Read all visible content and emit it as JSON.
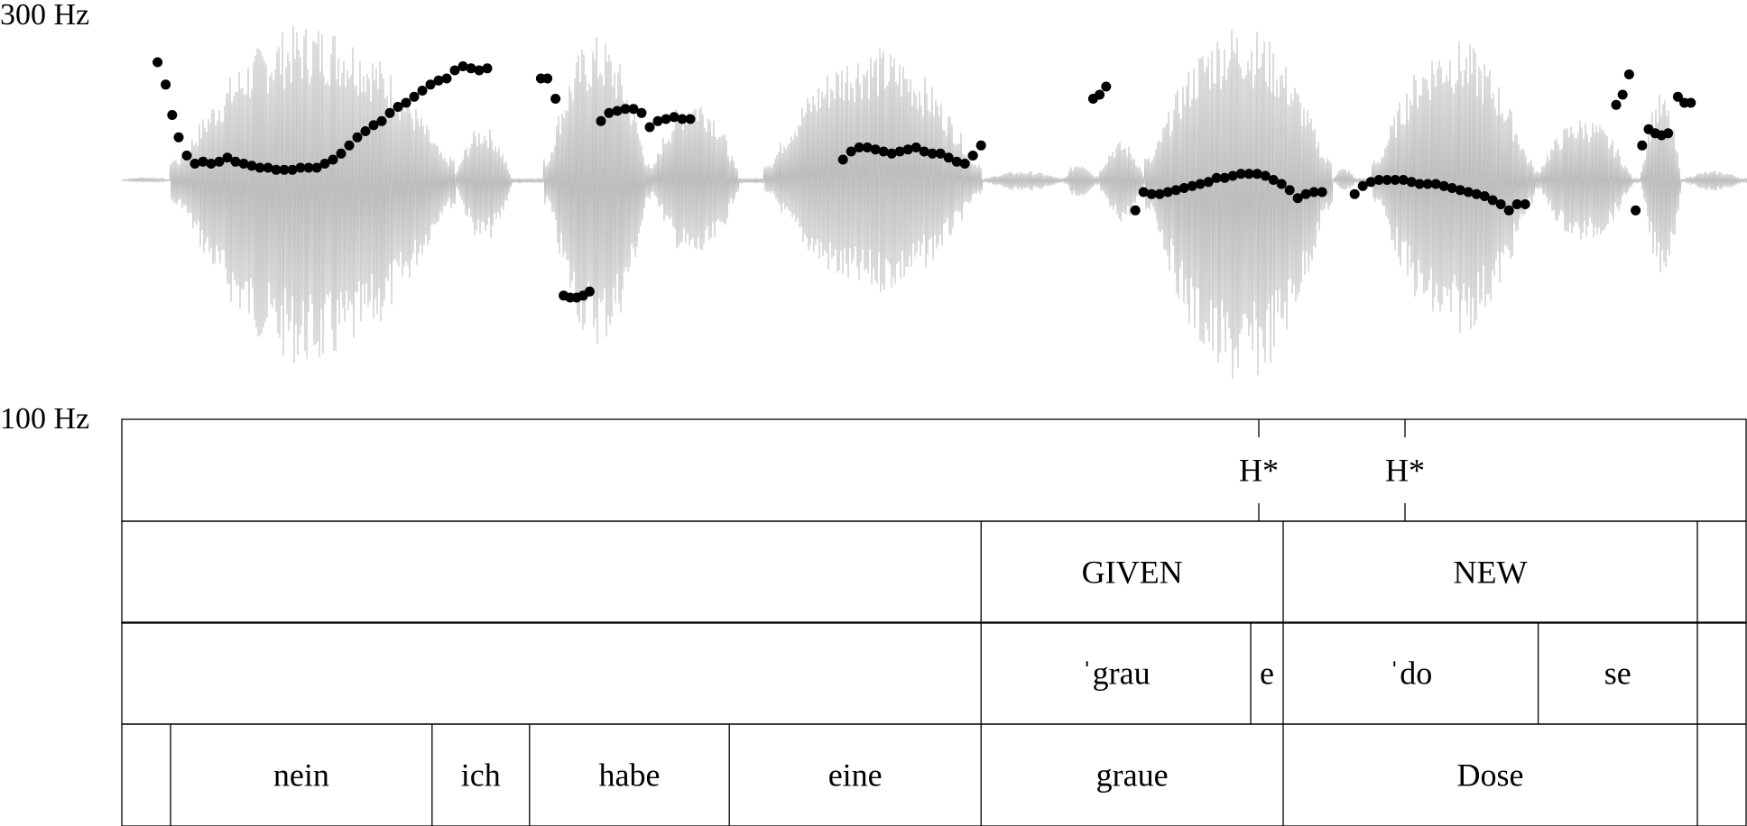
{
  "axis": {
    "f0_max_label": "300 Hz",
    "f0_min_label": "100 Hz"
  },
  "colors": {
    "waveform": "#bdbdbd",
    "pitch_points": "#000000",
    "grid": "#000000"
  },
  "tiers": [
    {
      "id": "tones",
      "points": [
        {
          "label": "H*",
          "time": 0.7
        },
        {
          "label": "H*",
          "time": 0.79
        }
      ]
    },
    {
      "id": "information-structure",
      "intervals": [
        {
          "label": "",
          "start": 0.0,
          "end": 0.529
        },
        {
          "label": "GIVEN",
          "start": 0.529,
          "end": 0.715
        },
        {
          "label": "NEW",
          "start": 0.715,
          "end": 0.97
        },
        {
          "label": "",
          "start": 0.97,
          "end": 1.0
        }
      ]
    },
    {
      "id": "syllables",
      "intervals": [
        {
          "label": "",
          "start": 0.0,
          "end": 0.529
        },
        {
          "label": "ˈgrau",
          "start": 0.529,
          "end": 0.695
        },
        {
          "label": "e",
          "start": 0.695,
          "end": 0.715
        },
        {
          "label": "ˈdo",
          "start": 0.715,
          "end": 0.872
        },
        {
          "label": "se",
          "start": 0.872,
          "end": 0.97
        },
        {
          "label": "",
          "start": 0.97,
          "end": 1.0
        }
      ]
    },
    {
      "id": "words",
      "intervals": [
        {
          "label": "",
          "start": 0.0,
          "end": 0.03
        },
        {
          "label": "nein",
          "start": 0.03,
          "end": 0.191
        },
        {
          "label": "ich",
          "start": 0.191,
          "end": 0.251
        },
        {
          "label": "habe",
          "start": 0.251,
          "end": 0.374
        },
        {
          "label": "eine",
          "start": 0.374,
          "end": 0.529
        },
        {
          "label": "graue",
          "start": 0.529,
          "end": 0.715
        },
        {
          "label": "Dose",
          "start": 0.715,
          "end": 0.97
        },
        {
          "label": "",
          "start": 0.97,
          "end": 1.0
        }
      ]
    }
  ],
  "pitch_track": [
    [
      0.022,
      276
    ],
    [
      0.027,
      265
    ],
    [
      0.031,
      250
    ],
    [
      0.035,
      239
    ],
    [
      0.04,
      230
    ],
    [
      0.045,
      226
    ],
    [
      0.05,
      227
    ],
    [
      0.055,
      226
    ],
    [
      0.06,
      227
    ],
    [
      0.065,
      229
    ],
    [
      0.07,
      227
    ],
    [
      0.075,
      226
    ],
    [
      0.08,
      225
    ],
    [
      0.085,
      224
    ],
    [
      0.09,
      224
    ],
    [
      0.095,
      223
    ],
    [
      0.1,
      223
    ],
    [
      0.105,
      223
    ],
    [
      0.11,
      224
    ],
    [
      0.115,
      224
    ],
    [
      0.12,
      224
    ],
    [
      0.125,
      226
    ],
    [
      0.13,
      228
    ],
    [
      0.135,
      231
    ],
    [
      0.14,
      235
    ],
    [
      0.145,
      239
    ],
    [
      0.15,
      242
    ],
    [
      0.155,
      245
    ],
    [
      0.16,
      247
    ],
    [
      0.165,
      251
    ],
    [
      0.17,
      254
    ],
    [
      0.175,
      256
    ],
    [
      0.18,
      259
    ],
    [
      0.185,
      262
    ],
    [
      0.19,
      265
    ],
    [
      0.195,
      267
    ],
    [
      0.2,
      268
    ],
    [
      0.205,
      272
    ],
    [
      0.21,
      274
    ],
    [
      0.215,
      273
    ],
    [
      0.22,
      272
    ],
    [
      0.225,
      273
    ],
    [
      0.258,
      268
    ],
    [
      0.262,
      268
    ],
    [
      0.267,
      258
    ],
    [
      0.272,
      161
    ],
    [
      0.276,
      160
    ],
    [
      0.28,
      160
    ],
    [
      0.284,
      161
    ],
    [
      0.288,
      163
    ],
    [
      0.295,
      247
    ],
    [
      0.3,
      251
    ],
    [
      0.305,
      252
    ],
    [
      0.31,
      253
    ],
    [
      0.315,
      253
    ],
    [
      0.32,
      251
    ],
    [
      0.325,
      244
    ],
    [
      0.33,
      247
    ],
    [
      0.335,
      248
    ],
    [
      0.34,
      249
    ],
    [
      0.345,
      248
    ],
    [
      0.35,
      248
    ],
    [
      0.444,
      228
    ],
    [
      0.449,
      232
    ],
    [
      0.454,
      234
    ],
    [
      0.459,
      234
    ],
    [
      0.464,
      233
    ],
    [
      0.469,
      232
    ],
    [
      0.474,
      231
    ],
    [
      0.479,
      232
    ],
    [
      0.484,
      233
    ],
    [
      0.489,
      234
    ],
    [
      0.494,
      232
    ],
    [
      0.499,
      231
    ],
    [
      0.504,
      231
    ],
    [
      0.509,
      229
    ],
    [
      0.514,
      227
    ],
    [
      0.519,
      226
    ],
    [
      0.524,
      230
    ],
    [
      0.529,
      235
    ],
    [
      0.598,
      258
    ],
    [
      0.602,
      260
    ],
    [
      0.606,
      264
    ],
    [
      0.624,
      203
    ],
    [
      0.629,
      212
    ],
    [
      0.634,
      211
    ],
    [
      0.639,
      211
    ],
    [
      0.644,
      212
    ],
    [
      0.649,
      213
    ],
    [
      0.654,
      214
    ],
    [
      0.659,
      215
    ],
    [
      0.664,
      216
    ],
    [
      0.669,
      217
    ],
    [
      0.674,
      219
    ],
    [
      0.679,
      219
    ],
    [
      0.684,
      220
    ],
    [
      0.689,
      221
    ],
    [
      0.694,
      221
    ],
    [
      0.699,
      221
    ],
    [
      0.704,
      220
    ],
    [
      0.709,
      218
    ],
    [
      0.714,
      216
    ],
    [
      0.719,
      213
    ],
    [
      0.724,
      209
    ],
    [
      0.729,
      211
    ],
    [
      0.734,
      212
    ],
    [
      0.739,
      212
    ],
    [
      0.759,
      211
    ],
    [
      0.764,
      215
    ],
    [
      0.769,
      217
    ],
    [
      0.774,
      218
    ],
    [
      0.779,
      218
    ],
    [
      0.784,
      218
    ],
    [
      0.789,
      218
    ],
    [
      0.794,
      217
    ],
    [
      0.799,
      216
    ],
    [
      0.804,
      216
    ],
    [
      0.809,
      216
    ],
    [
      0.814,
      215
    ],
    [
      0.819,
      214
    ],
    [
      0.824,
      213
    ],
    [
      0.829,
      212
    ],
    [
      0.834,
      211
    ],
    [
      0.839,
      210
    ],
    [
      0.844,
      208
    ],
    [
      0.849,
      206
    ],
    [
      0.854,
      203
    ],
    [
      0.859,
      206
    ],
    [
      0.864,
      206
    ],
    [
      0.92,
      255
    ],
    [
      0.924,
      260
    ],
    [
      0.928,
      270
    ],
    [
      0.932,
      203
    ],
    [
      0.936,
      235
    ],
    [
      0.94,
      243
    ],
    [
      0.944,
      241
    ],
    [
      0.948,
      240
    ],
    [
      0.952,
      241
    ],
    [
      0.958,
      259
    ],
    [
      0.962,
      256
    ],
    [
      0.966,
      256
    ]
  ]
}
